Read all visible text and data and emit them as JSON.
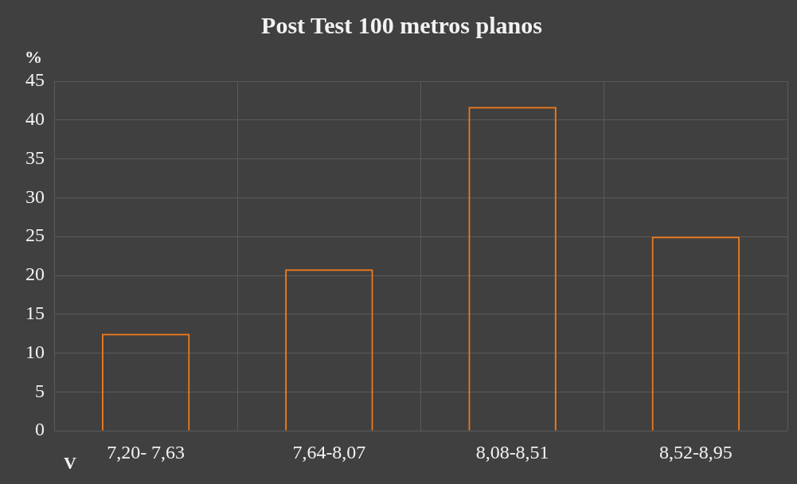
{
  "chart_data": {
    "type": "bar",
    "title": "Post Test 100 metros planos",
    "ylabel": "%",
    "xlabel": "V",
    "categories": [
      "7,20- 7,63",
      "7,64-8,07",
      "8,08-8,51",
      "8,52-8,95"
    ],
    "values": [
      12.5,
      20.8,
      41.7,
      25
    ],
    "color": "#f07a1a",
    "ylim": [
      0,
      45
    ],
    "yticks": [
      0,
      5,
      10,
      15,
      20,
      25,
      30,
      35,
      40,
      45
    ],
    "grid": true
  }
}
